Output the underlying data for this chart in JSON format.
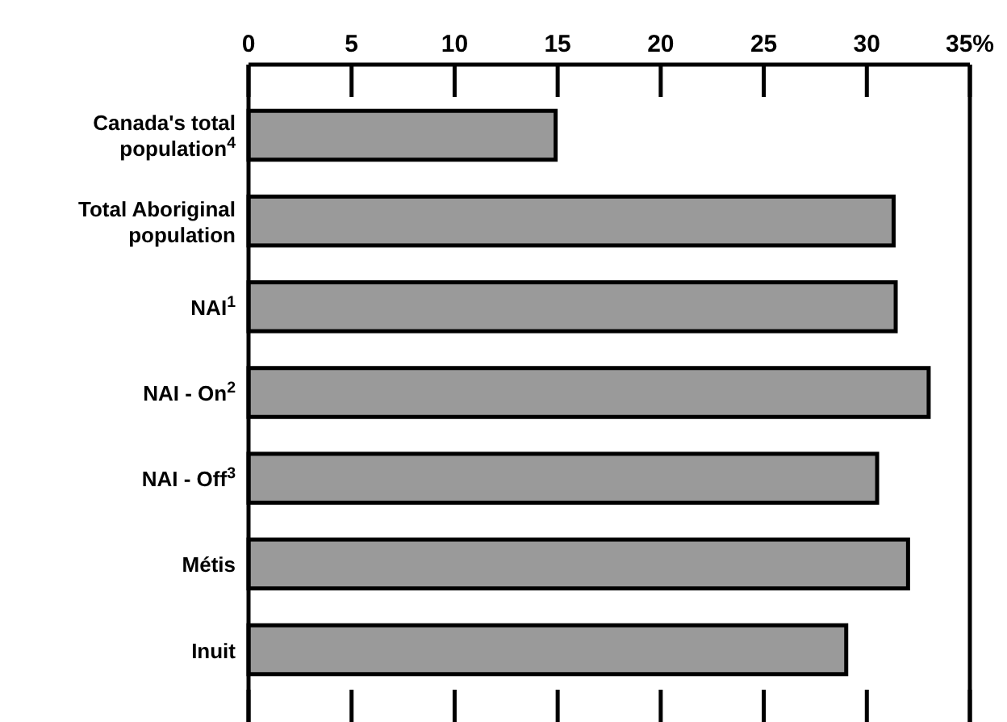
{
  "chart_data": {
    "type": "bar",
    "orientation": "horizontal",
    "categories": [
      "Canada's total population$^{4}$",
      "Total Aboriginal population",
      "NAI$^{1}$",
      "NAI - On$^{2}$",
      "NAI - Off$^{3}$",
      "Métis",
      "Inuit"
    ],
    "values": [
      14.9,
      31.3,
      31.4,
      33.0,
      30.5,
      32.0,
      29.0
    ],
    "color": "#9a9a9a",
    "xlim": [
      0,
      35
    ],
    "xticks": [
      0,
      5,
      10,
      15,
      20,
      25,
      30,
      {
        "value": 35,
        "label": "35%"
      }
    ],
    "grid": false
  }
}
